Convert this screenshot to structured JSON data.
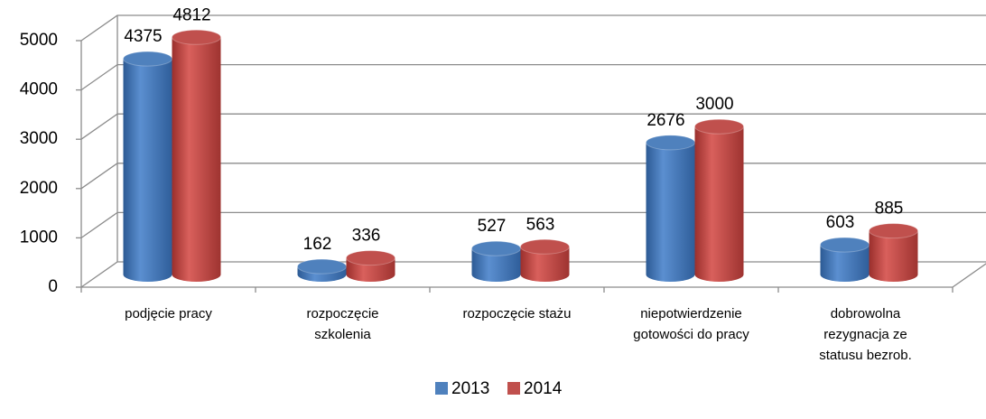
{
  "chart_data": {
    "type": "bar3d",
    "categories": [
      "podjęcie pracy",
      "rozpoczęcie szkolenia",
      "rozpoczęcie stażu",
      "niepotwierdzenie gotowości do pracy",
      "dobrowolna rezygnacja ze statusu bezrob."
    ],
    "series": [
      {
        "name": "2013",
        "color": "#4f81bd",
        "values": [
          4375,
          162,
          527,
          2676,
          603
        ]
      },
      {
        "name": "2014",
        "color": "#c0504d",
        "values": [
          4812,
          336,
          563,
          3000,
          885
        ]
      }
    ],
    "ylim": [
      0,
      5000
    ],
    "yticks": [
      0,
      1000,
      2000,
      3000,
      4000,
      5000
    ],
    "grid": true,
    "legend": "bottom"
  }
}
